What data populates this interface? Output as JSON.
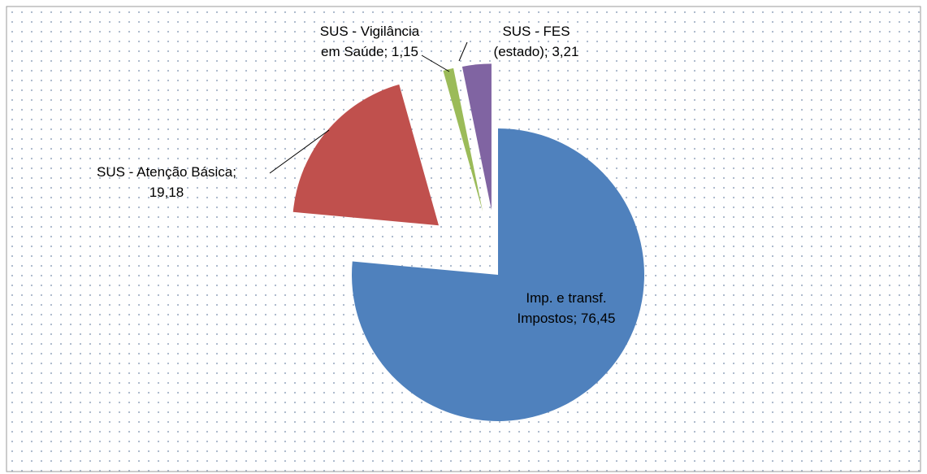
{
  "chart_data": {
    "type": "pie",
    "values": [
      76.45,
      19.18,
      1.15,
      3.21
    ],
    "value_labels": [
      "Imp. e transf. Impostos; 76,45",
      "SUS - Atenção Básica; 19,18",
      "SUS - Vigilância em Saúde; 1,15",
      "SUS - FES (estado); 3,21"
    ],
    "colors": [
      "#4f81bd",
      "#c0504d",
      "#9bbb59",
      "#8064a2"
    ]
  }
}
